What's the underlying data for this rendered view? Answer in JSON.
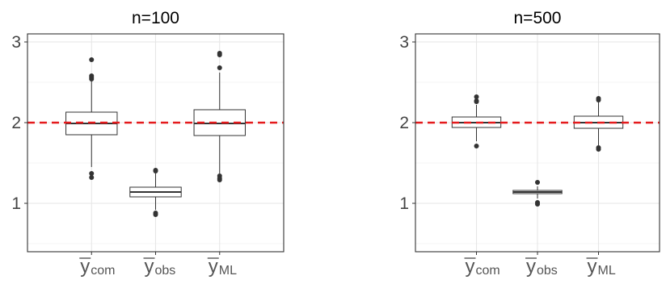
{
  "chart_data": [
    {
      "type": "box",
      "title": "n=100",
      "categories": [
        {
          "base": "y",
          "sub": "com"
        },
        {
          "base": "y",
          "sub": "obs"
        },
        {
          "base": "y",
          "sub": "ML"
        }
      ],
      "yticks": [
        1,
        2,
        3
      ],
      "ylim": [
        0.4,
        3.1
      ],
      "reference_line": {
        "y": 2,
        "color": "#e41a1c",
        "style": "dashed"
      },
      "boxes": [
        {
          "q1": 1.85,
          "median": 1.99,
          "q3": 2.13,
          "whisker_low": 1.45,
          "whisker_high": 2.53,
          "outliers": [
            2.78,
            2.58,
            2.56,
            2.54,
            1.37,
            1.32
          ]
        },
        {
          "q1": 1.08,
          "median": 1.14,
          "q3": 1.2,
          "whisker_low": 0.92,
          "whisker_high": 1.37,
          "outliers": [
            1.41,
            1.4,
            0.88,
            0.86
          ]
        },
        {
          "q1": 1.84,
          "median": 1.99,
          "q3": 2.16,
          "whisker_low": 1.37,
          "whisker_high": 2.62,
          "outliers": [
            2.86,
            2.84,
            2.68,
            1.34,
            1.31,
            1.29
          ]
        }
      ]
    },
    {
      "type": "box",
      "title": "n=500",
      "categories": [
        {
          "base": "y",
          "sub": "com"
        },
        {
          "base": "y",
          "sub": "obs"
        },
        {
          "base": "y",
          "sub": "ML"
        }
      ],
      "yticks": [
        1,
        2,
        3
      ],
      "ylim": [
        0.4,
        3.1
      ],
      "reference_line": {
        "y": 2,
        "color": "#e41a1c",
        "style": "dashed"
      },
      "boxes": [
        {
          "q1": 1.94,
          "median": 2.0,
          "q3": 2.07,
          "whisker_low": 1.77,
          "whisker_high": 2.22,
          "outliers": [
            2.32,
            2.27,
            2.26,
            1.71
          ]
        },
        {
          "q1": 1.12,
          "median": 1.14,
          "q3": 1.16,
          "whisker_low": 1.06,
          "whisker_high": 1.21,
          "outliers": [
            1.26,
            1.01,
            0.99
          ]
        },
        {
          "q1": 1.93,
          "median": 2.0,
          "q3": 2.08,
          "whisker_low": 1.72,
          "whisker_high": 2.27,
          "outliers": [
            2.3,
            2.28,
            1.69,
            1.67
          ]
        }
      ]
    }
  ]
}
